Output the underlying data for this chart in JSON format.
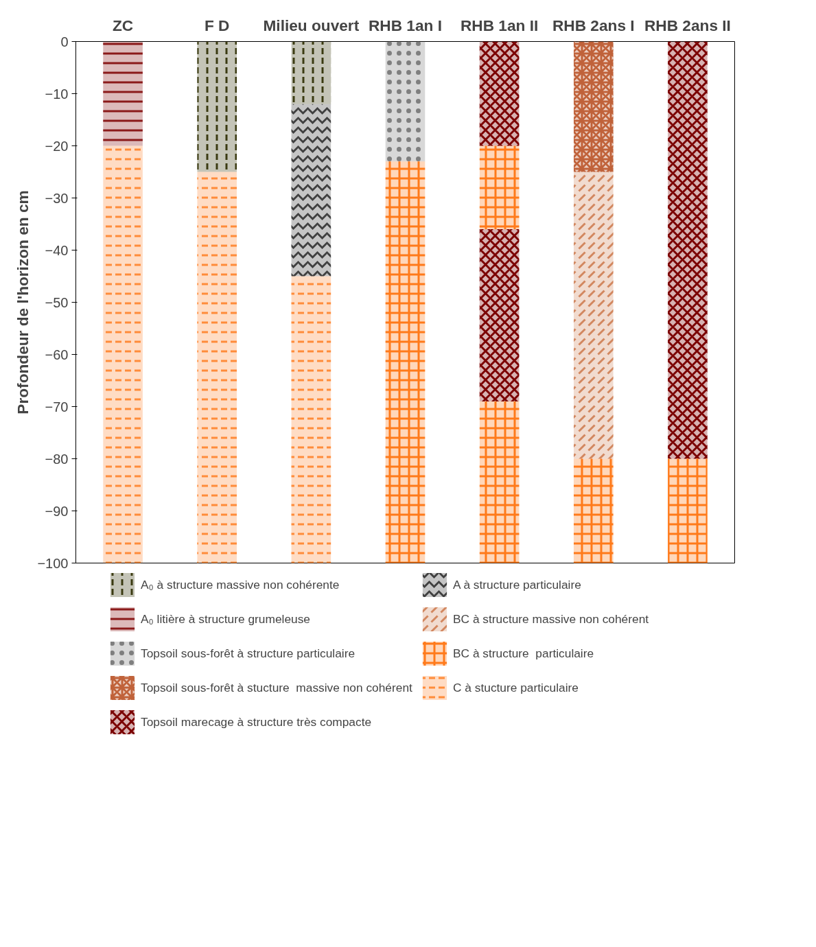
{
  "chart_data": {
    "type": "bar",
    "stacked": true,
    "ylabel": "Profondeur de l'horizon en cm",
    "categories": [
      "ZC",
      "F D",
      "Milieu ouvert",
      "RHB 1an I",
      "RHB 1an II",
      "RHB 2ans I",
      "RHB 2ans II"
    ],
    "ylim": [
      -100,
      0
    ],
    "yticks": [
      -100,
      -90,
      -80,
      -70,
      -60,
      -50,
      -40,
      -30,
      -20,
      -10,
      0
    ],
    "grid": false,
    "legend": "bottom",
    "series": [
      {
        "name": "A₀ à structure massive non cohérente",
        "color": "#3b3b12",
        "values": [
          null,
          -25,
          -12,
          null,
          null,
          null,
          null
        ]
      },
      {
        "name": "A₀ litière à structure grumeleuse",
        "color": "#8b1a1a",
        "values": [
          -20,
          null,
          null,
          null,
          null,
          null,
          null
        ]
      },
      {
        "name": "Topsoil sous-forêt à structure particulaire",
        "color": "#7f7f7f",
        "values": [
          null,
          null,
          null,
          -23,
          null,
          null,
          null
        ]
      },
      {
        "name": "Topsoil sous-forêt à stucture  massive non cohérent",
        "color": "#c0623a",
        "values": [
          null,
          null,
          null,
          null,
          null,
          -25,
          null
        ]
      },
      {
        "name": "Topsoil marecage à structure très compacte",
        "color": "#7b0000",
        "values": [
          null,
          null,
          null,
          null,
          -20,
          null,
          -80
        ]
      },
      {
        "name": "A à structure particulaire",
        "color": "#404040",
        "values": [
          null,
          null,
          -33,
          null,
          null,
          null,
          null
        ]
      },
      {
        "name": "BC à structure massive non cohérent",
        "color": "#d2875f",
        "values": [
          null,
          null,
          null,
          null,
          null,
          -55,
          null
        ]
      },
      {
        "name": "BC à structure  particulaire",
        "color": "#ff7a1a",
        "values": [
          null,
          null,
          null,
          -77,
          -16,
          -20,
          -20
        ]
      },
      {
        "name": "C à stucture particulaire",
        "color": "#ff8c3a",
        "values": [
          -80,
          -75,
          -55,
          null,
          null,
          null,
          null
        ]
      },
      {
        "color": "#7b0000",
        "values": [
          null,
          null,
          null,
          null,
          -33,
          null,
          null
        ]
      },
      {
        "color": "#ff7a1a",
        "values": [
          null,
          null,
          null,
          null,
          -31,
          null,
          null
        ]
      }
    ]
  }
}
